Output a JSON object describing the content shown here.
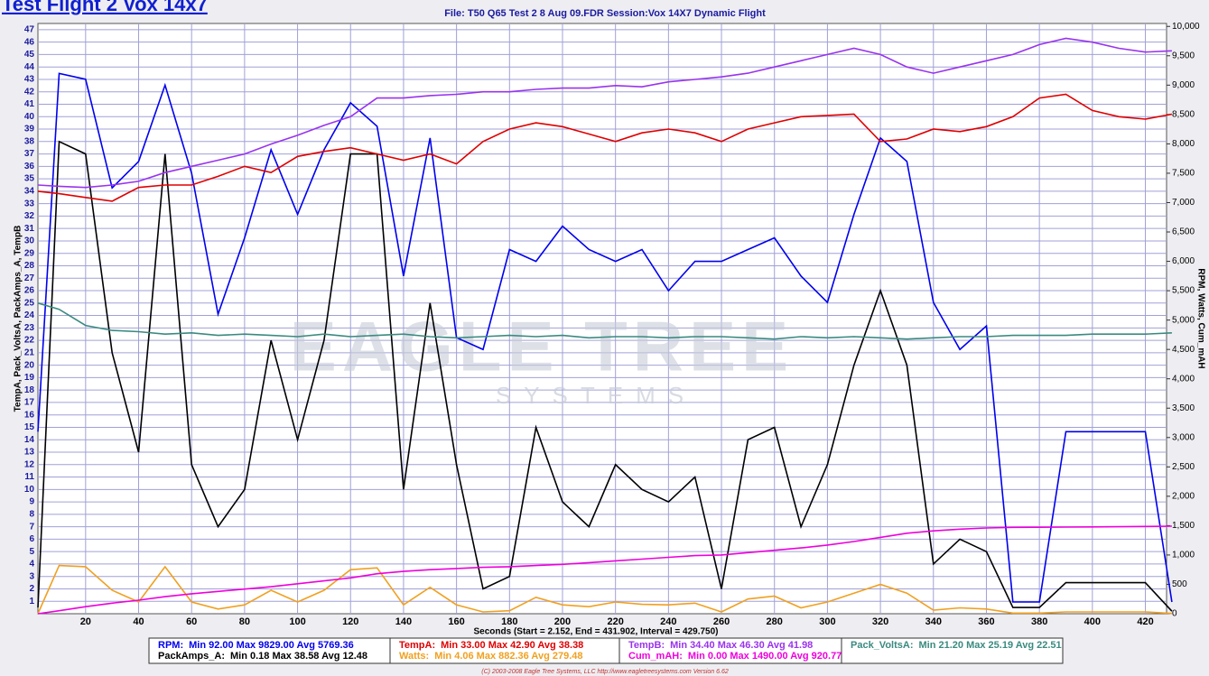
{
  "page_title": "Test Flight 2 Vox 14x7",
  "watermark": [
    "EAGLE TREE",
    "SYSTEMS"
  ],
  "footer": "(C) 2003-2008 Eagle Tree Systems, LLC     http://www.eagletreesystems.com     Version 6.62",
  "chart_data": {
    "type": "line",
    "title": "File: T50 Q65 Test 2 8 Aug 09.FDR   Session:Vox 14X7 Dynamic Flight",
    "x_label": "Seconds (Start = 2.152,  End = 431.902,  Interval = 429.750)",
    "y_label": "TempA, Pack_VoltsA, PackAmps_A, TempB",
    "y2_label": "RPM, Watts, Cum_mAH",
    "grid": true,
    "x": [
      2,
      10,
      20,
      30,
      40,
      50,
      60,
      70,
      80,
      90,
      100,
      110,
      120,
      130,
      140,
      150,
      160,
      170,
      180,
      190,
      200,
      210,
      220,
      230,
      240,
      250,
      260,
      270,
      280,
      290,
      300,
      310,
      320,
      330,
      340,
      350,
      360,
      370,
      380,
      390,
      400,
      410,
      420,
      430
    ],
    "xlim": [
      2,
      428
    ],
    "xticks": [
      20,
      40,
      60,
      80,
      100,
      120,
      140,
      160,
      180,
      200,
      220,
      240,
      260,
      280,
      300,
      320,
      340,
      360,
      380,
      400,
      420
    ],
    "ylim": [
      0,
      47.5
    ],
    "yticks": [
      1,
      2,
      3,
      4,
      5,
      6,
      7,
      8,
      9,
      10,
      11,
      12,
      13,
      14,
      15,
      16,
      17,
      18,
      19,
      20,
      21,
      22,
      23,
      24,
      25,
      26,
      27,
      28,
      29,
      30,
      31,
      32,
      33,
      34,
      35,
      36,
      37,
      38,
      39,
      40,
      41,
      42,
      43,
      44,
      45,
      46,
      47
    ],
    "y2lim": [
      0,
      10050
    ],
    "y2ticks": [
      0,
      500,
      {
        "value": 1000,
        "label": "1,000"
      },
      {
        "value": 1500,
        "label": "1,500"
      },
      {
        "value": 2000,
        "label": "2,000"
      },
      {
        "value": 2500,
        "label": "2,500"
      },
      {
        "value": 3000,
        "label": "3,000"
      },
      {
        "value": 3500,
        "label": "3,500"
      },
      {
        "value": 4000,
        "label": "4,000"
      },
      {
        "value": 4500,
        "label": "4,500"
      },
      {
        "value": 5000,
        "label": "5,000"
      },
      {
        "value": 5500,
        "label": "5,500"
      },
      {
        "value": 6000,
        "label": "6,000"
      },
      {
        "value": 6500,
        "label": "6,500"
      },
      {
        "value": 7000,
        "label": "7,000"
      },
      {
        "value": 7500,
        "label": "7,500"
      },
      {
        "value": 8000,
        "label": "8,000"
      },
      {
        "value": 8500,
        "label": "8,500"
      },
      {
        "value": 9000,
        "label": "9,000"
      },
      {
        "value": 9500,
        "label": "9,500"
      },
      {
        "value": 10000,
        "label": "10,000"
      }
    ],
    "series": [
      {
        "name": "RPM:",
        "stats": "Min 92.00   Max 9829.00   Avg 5769.36",
        "color": "#0000ee",
        "axis": "y2",
        "values": [
          3100,
          9200,
          9100,
          7250,
          7700,
          9000,
          7500,
          5100,
          6400,
          7900,
          6800,
          7900,
          8700,
          8300,
          5750,
          8100,
          4700,
          4500,
          6200,
          6000,
          6600,
          6200,
          6000,
          6200,
          5500,
          6000,
          6000,
          6200,
          6400,
          5750,
          5300,
          6800,
          8100,
          7700,
          5300,
          4500,
          4900,
          200,
          200,
          3100,
          3100,
          3100,
          3100,
          200
        ]
      },
      {
        "name": "PackAmps_A:",
        "stats": "Min 0.18   Max 38.58   Avg 12.48",
        "color": "#000000",
        "values": [
          0.5,
          38,
          37,
          21,
          13,
          37,
          12,
          7,
          10,
          22,
          14,
          22,
          37,
          37,
          10,
          25,
          12,
          2,
          3,
          15,
          9,
          7,
          12,
          10,
          9,
          11,
          2,
          14,
          15,
          7,
          12,
          20,
          26,
          20,
          4,
          6,
          5,
          0.5,
          0.5,
          2.5,
          2.5,
          2.5,
          2.5,
          0.2
        ]
      },
      {
        "name": "TempA:",
        "stats": "Min 33.00   Max 42.90   Avg 38.38",
        "color": "#e00000",
        "values": [
          34,
          33.8,
          33.5,
          33.2,
          34.3,
          34.5,
          34.5,
          35.2,
          36,
          35.5,
          36.8,
          37.2,
          37.5,
          37,
          36.5,
          37,
          36.2,
          38,
          39,
          39.5,
          39.2,
          38.6,
          38,
          38.7,
          39,
          38.7,
          38,
          39,
          39.5,
          40,
          40.1,
          40.2,
          38,
          38.2,
          39,
          38.8,
          39.2,
          40,
          41.5,
          41.8,
          40.5,
          40,
          39.8,
          40.2
        ]
      },
      {
        "name": "Watts:",
        "stats": "Min 4.06   Max 882.36   Avg 279.48",
        "color": "#f0a020",
        "axis": "y2",
        "values": [
          0,
          820,
          800,
          400,
          200,
          800,
          200,
          80,
          150,
          400,
          200,
          400,
          750,
          780,
          150,
          450,
          150,
          30,
          50,
          280,
          150,
          120,
          200,
          160,
          150,
          180,
          30,
          250,
          300,
          100,
          200,
          350,
          500,
          350,
          60,
          100,
          80,
          10,
          10,
          30,
          30,
          30,
          30,
          5
        ]
      },
      {
        "name": "TempB:",
        "stats": "Min 34.40   Max 46.30   Avg 41.98",
        "color": "#9933ee",
        "values": [
          34.5,
          34.4,
          34.3,
          34.5,
          34.8,
          35.5,
          36,
          36.5,
          37,
          37.8,
          38.5,
          39.3,
          40,
          41.5,
          41.5,
          41.7,
          41.8,
          42,
          42,
          42.2,
          42.3,
          42.3,
          42.5,
          42.4,
          42.8,
          43,
          43.2,
          43.5,
          44,
          44.5,
          45,
          45.5,
          45,
          44,
          43.5,
          44,
          44.5,
          45,
          45.8,
          46.3,
          46,
          45.5,
          45.2,
          45.3
        ]
      },
      {
        "name": "Cum_mAH:",
        "stats": "Min 0.00   Max 1490.00   Avg 920.77",
        "color": "#ee00dd",
        "axis": "y2",
        "values": [
          0,
          50,
          120,
          180,
          230,
          290,
          340,
          380,
          420,
          460,
          510,
          560,
          610,
          680,
          720,
          750,
          770,
          790,
          800,
          820,
          840,
          870,
          900,
          930,
          960,
          990,
          1000,
          1040,
          1080,
          1120,
          1170,
          1230,
          1300,
          1370,
          1410,
          1440,
          1460,
          1470,
          1472,
          1475,
          1478,
          1482,
          1486,
          1490
        ]
      },
      {
        "name": "Pack_VoltsA:",
        "stats": "Min 21.20   Max 25.19   Avg 22.51",
        "color": "#3a8a80",
        "values": [
          25,
          24.5,
          23.2,
          22.8,
          22.7,
          22.5,
          22.6,
          22.4,
          22.5,
          22.4,
          22.3,
          22.5,
          22.3,
          22.4,
          22.5,
          22.3,
          22.2,
          22.3,
          22.4,
          22.3,
          22.4,
          22.2,
          22.3,
          22.3,
          22.2,
          22.3,
          22.3,
          22.2,
          22.1,
          22.3,
          22.2,
          22.3,
          22.2,
          22.1,
          22.2,
          22.3,
          22.3,
          22.4,
          22.4,
          22.4,
          22.5,
          22.5,
          22.5,
          22.6
        ]
      }
    ]
  }
}
